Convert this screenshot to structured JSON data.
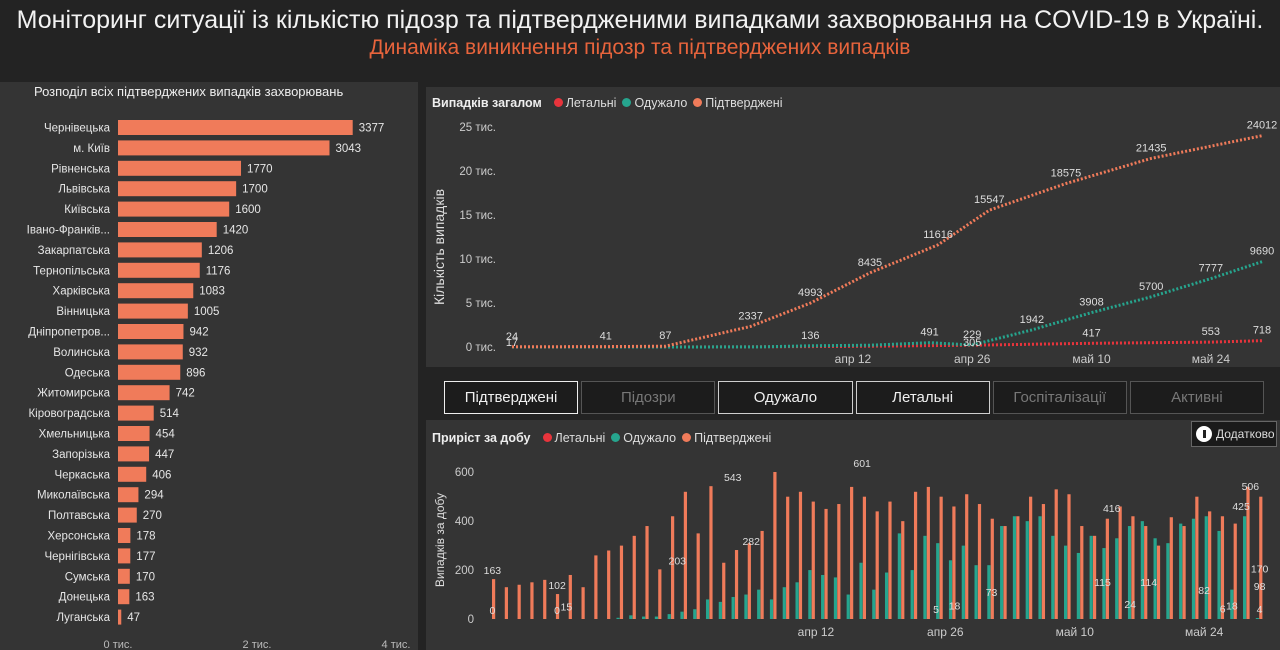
{
  "header": {
    "title": "Моніторинг ситуації із кількістю підозр та підтвердженими випадками захворювання на COVID-19 в Україні.",
    "subtitle": "Динаміка виникнення підозр та підтверджених випадків"
  },
  "colors": {
    "accent": "#e8643c",
    "deaths": "#e8343c",
    "recovered": "#26a58e",
    "confirmed": "#f07b5a"
  },
  "tabs": [
    {
      "label": "Підтверджені",
      "state": "selected"
    },
    {
      "label": "Підозри",
      "state": "disabled"
    },
    {
      "label": "Одужало",
      "state": "enabled"
    },
    {
      "label": "Летальні",
      "state": "enabled"
    },
    {
      "label": "Госпіталізації",
      "state": "disabled"
    },
    {
      "label": "Активні",
      "state": "disabled"
    }
  ],
  "extra_button": {
    "label": "Додатково",
    "icon": "info-icon"
  },
  "chart_data": [
    {
      "type": "bar",
      "orientation": "horizontal",
      "title": "Розподіл всіх підтверджених випадків захворювань",
      "categories": [
        "Чернівецька",
        "м. Київ",
        "Рівненська",
        "Львівська",
        "Київська",
        "Івано-Франків...",
        "Закарпатська",
        "Тернопільська",
        "Харківська",
        "Вінницька",
        "Дніпропетров...",
        "Волинська",
        "Одеська",
        "Житомирська",
        "Кіровоградська",
        "Хмельницька",
        "Запорізька",
        "Черкаська",
        "Миколаївська",
        "Полтавська",
        "Херсонська",
        "Чернігівська",
        "Сумська",
        "Донецька",
        "Луганська"
      ],
      "values": [
        3377,
        3043,
        1770,
        1700,
        1600,
        1420,
        1206,
        1176,
        1083,
        1005,
        942,
        932,
        896,
        742,
        514,
        454,
        447,
        406,
        294,
        270,
        178,
        177,
        170,
        163,
        47
      ],
      "xticks": [
        "0 тис.",
        "2 тис.",
        "4 тис."
      ],
      "xlim": [
        0,
        4000
      ]
    },
    {
      "type": "line",
      "title": "Випадків загалом",
      "ylabel": "Кількість випадків",
      "x_range": [
        "2020-03-03",
        "2020-05-30"
      ],
      "xticks": [
        "апр 12",
        "апр 26",
        "май 10",
        "май 24"
      ],
      "yticks": [
        "0 тис.",
        "5 тис.",
        "10 тис.",
        "15 тис.",
        "20 тис.",
        "25 тис."
      ],
      "ylim": [
        0,
        25000
      ],
      "series": [
        {
          "name": "Летальні",
          "key": "deaths",
          "points": [
            [
              "2020-03-03",
              0
            ],
            [
              "2020-03-17",
              1
            ],
            [
              "2020-04-01",
              22
            ],
            [
              "2020-04-12",
              73
            ],
            [
              "2020-04-26",
              201
            ],
            [
              "2020-05-10",
              417
            ],
            [
              "2020-05-24",
              553
            ],
            [
              "2020-05-30",
              718
            ]
          ],
          "labels": [
            [
              "2020-05-10",
              "417"
            ],
            [
              "2020-05-24",
              "553"
            ],
            [
              "2020-05-30",
              "718"
            ]
          ]
        },
        {
          "name": "Одужало",
          "key": "recovered",
          "points": [
            [
              "2020-03-03",
              0
            ],
            [
              "2020-03-17",
              1
            ],
            [
              "2020-04-01",
              10
            ],
            [
              "2020-04-07",
              136
            ],
            [
              "2020-04-14",
              200
            ],
            [
              "2020-04-21",
              491
            ],
            [
              "2020-04-26",
              229
            ],
            [
              "2020-05-03",
              1942
            ],
            [
              "2020-05-10",
              3908
            ],
            [
              "2020-05-17",
              5700
            ],
            [
              "2020-05-24",
              7777
            ],
            [
              "2020-05-30",
              9690
            ]
          ],
          "labels": [
            [
              "2020-04-07",
              "136"
            ],
            [
              "2020-04-21",
              "491"
            ],
            [
              "2020-04-26",
              "229"
            ],
            [
              "2020-05-03",
              "1942"
            ],
            [
              "2020-05-10",
              "3908"
            ],
            [
              "2020-05-17",
              "5700"
            ],
            [
              "2020-05-24",
              "7777"
            ],
            [
              "2020-05-30",
              "9690"
            ]
          ]
        },
        {
          "name": "Підтверджені",
          "key": "confirmed",
          "points": [
            [
              "2020-03-03",
              24
            ],
            [
              "2020-03-14",
              41
            ],
            [
              "2020-03-21",
              87
            ],
            [
              "2020-03-31",
              2337
            ],
            [
              "2020-04-07",
              4993
            ],
            [
              "2020-04-14",
              8435
            ],
            [
              "2020-04-22",
              11616
            ],
            [
              "2020-04-28",
              15547
            ],
            [
              "2020-05-07",
              18575
            ],
            [
              "2020-05-17",
              21435
            ],
            [
              "2020-05-30",
              24012
            ]
          ],
          "labels": [
            [
              "2020-03-03",
              "24"
            ],
            [
              "2020-03-14",
              "41"
            ],
            [
              "2020-03-21",
              "87"
            ],
            [
              "2020-03-31",
              "2337"
            ],
            [
              "2020-04-07",
              "4993"
            ],
            [
              "2020-04-14",
              "8435"
            ],
            [
              "2020-04-22",
              "11616"
            ],
            [
              "2020-04-28",
              "15547"
            ],
            [
              "2020-05-07",
              "18575"
            ],
            [
              "2020-05-17",
              "21435"
            ],
            [
              "2020-05-30",
              "24012"
            ]
          ]
        }
      ],
      "extra_labels": [
        [
          "2020-03-03",
          "17"
        ],
        [
          "2020-04-26",
          "305"
        ]
      ]
    },
    {
      "type": "bar",
      "title": "Приріст за добу",
      "ylabel": "Випадків за добу",
      "x_range": [
        "2020-03-08",
        "2020-05-30"
      ],
      "xticks": [
        "апр 12",
        "апр 26",
        "май 10",
        "май 24"
      ],
      "yticks": [
        "0",
        "200",
        "400",
        "600"
      ],
      "ylim": [
        0,
        650
      ],
      "series": [
        {
          "name": "Летальні",
          "key": "deaths"
        },
        {
          "name": "Одужало",
          "key": "recovered"
        },
        {
          "name": "Підтверджені",
          "key": "confirmed"
        }
      ],
      "confirmed": [
        163,
        130,
        140,
        150,
        160,
        102,
        180,
        130,
        260,
        280,
        300,
        340,
        380,
        203,
        420,
        520,
        350,
        543,
        230,
        282,
        310,
        360,
        601,
        500,
        520,
        480,
        450,
        470,
        540,
        500,
        440,
        480,
        400,
        520,
        540,
        500,
        460,
        510,
        470,
        410,
        380,
        420,
        500,
        470,
        530,
        510,
        380,
        340,
        410,
        460,
        420,
        380,
        300,
        416,
        380,
        500,
        440,
        420,
        390,
        540,
        500
      ],
      "recovered": [
        0,
        0,
        0,
        0,
        0,
        0,
        0,
        0,
        0,
        0,
        5,
        15,
        10,
        10,
        20,
        30,
        40,
        80,
        70,
        90,
        100,
        120,
        80,
        130,
        150,
        200,
        180,
        170,
        100,
        230,
        120,
        190,
        350,
        200,
        340,
        310,
        240,
        300,
        220,
        220,
        380,
        420,
        400,
        420,
        340,
        300,
        270,
        340,
        290,
        330,
        380,
        400,
        330,
        310,
        390,
        410,
        420,
        360,
        120,
        420,
        4
      ],
      "labels": [
        [
          "2020-03-08",
          "163"
        ],
        [
          "2020-03-08",
          "0"
        ],
        [
          "2020-03-15",
          "102"
        ],
        [
          "2020-03-15",
          "0"
        ],
        [
          "2020-03-16",
          "15"
        ],
        [
          "2020-03-28",
          "203"
        ],
        [
          "2020-04-03",
          "543"
        ],
        [
          "2020-04-05",
          "282"
        ],
        [
          "2020-04-17",
          "601"
        ],
        [
          "2020-04-25",
          "5"
        ],
        [
          "2020-04-27",
          "18"
        ],
        [
          "2020-05-01",
          "73"
        ],
        [
          "2020-05-13",
          "115"
        ],
        [
          "2020-05-14",
          "416"
        ],
        [
          "2020-05-16",
          "24"
        ],
        [
          "2020-05-18",
          "114"
        ],
        [
          "2020-05-24",
          "82"
        ],
        [
          "2020-05-26",
          "6"
        ],
        [
          "2020-05-27",
          "18"
        ],
        [
          "2020-05-28",
          "425"
        ],
        [
          "2020-05-29",
          "506"
        ],
        [
          "2020-05-30",
          "170"
        ],
        [
          "2020-05-30",
          "98"
        ],
        [
          "2020-05-30",
          "4"
        ]
      ]
    }
  ]
}
